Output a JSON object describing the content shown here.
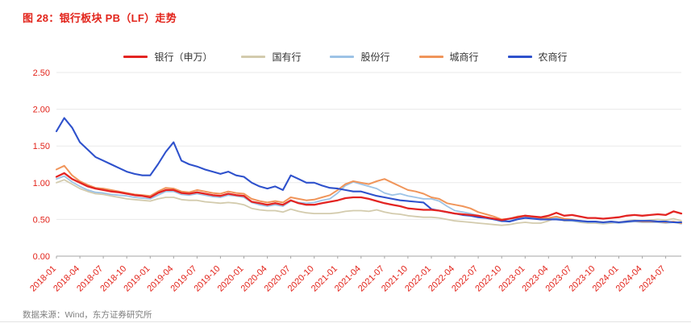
{
  "figure": {
    "title": "图 28：银行板块 PB（LF）走势",
    "source": "数据来源：Wind，东方证券研究所"
  },
  "colors": {
    "title": "#E2231A",
    "axis_label": "#E2231A",
    "source": "#7F7F7F",
    "grid": "#EAEAEA",
    "axis_line": "#A6A6A6"
  },
  "chart_data": {
    "type": "line",
    "title": "图 28：银行板块 PB（LF）走势",
    "xlabel": "",
    "ylabel": "",
    "ylim": [
      0,
      2.5
    ],
    "grid": "horizontal",
    "legend_position": "top",
    "y_ticks": [
      "0.00",
      "0.50",
      "1.00",
      "1.50",
      "2.00",
      "2.50"
    ],
    "x_tick_labels": [
      "2018-01",
      "2018-04",
      "2018-07",
      "2018-10",
      "2019-01",
      "2019-04",
      "2019-07",
      "2019-10",
      "2020-01",
      "2020-04",
      "2020-07",
      "2020-10",
      "2021-01",
      "2021-04",
      "2021-07",
      "2021-10",
      "2022-01",
      "2022-04",
      "2022-07",
      "2022-10",
      "2023-01",
      "2023-04",
      "2023-07",
      "2023-10",
      "2024-01",
      "2024-04",
      "2024-07"
    ],
    "tick_every_points": 3,
    "x_resolution": "monthly, 2018-01 to 2024-09",
    "draw_order": [
      1,
      2,
      3,
      4,
      0
    ],
    "series": [
      {
        "name": "银行（申万）",
        "color": "#E32422",
        "width": 2.3,
        "values": [
          1.08,
          1.13,
          1.05,
          1.0,
          0.95,
          0.92,
          0.9,
          0.88,
          0.87,
          0.85,
          0.83,
          0.82,
          0.8,
          0.86,
          0.9,
          0.9,
          0.86,
          0.85,
          0.87,
          0.85,
          0.83,
          0.82,
          0.85,
          0.83,
          0.82,
          0.74,
          0.72,
          0.7,
          0.72,
          0.7,
          0.76,
          0.72,
          0.7,
          0.7,
          0.72,
          0.74,
          0.76,
          0.79,
          0.8,
          0.8,
          0.78,
          0.75,
          0.72,
          0.7,
          0.68,
          0.65,
          0.64,
          0.63,
          0.63,
          0.62,
          0.6,
          0.58,
          0.57,
          0.56,
          0.55,
          0.53,
          0.51,
          0.49,
          0.51,
          0.53,
          0.55,
          0.54,
          0.53,
          0.55,
          0.59,
          0.55,
          0.56,
          0.54,
          0.52,
          0.52,
          0.51,
          0.52,
          0.53,
          0.55,
          0.56,
          0.55,
          0.56,
          0.57,
          0.56,
          0.61,
          0.58
        ]
      },
      {
        "name": "国有行",
        "color": "#D3CBAD",
        "width": 1.8,
        "values": [
          1.0,
          1.04,
          0.98,
          0.92,
          0.88,
          0.85,
          0.84,
          0.82,
          0.8,
          0.78,
          0.77,
          0.76,
          0.75,
          0.78,
          0.8,
          0.8,
          0.77,
          0.76,
          0.76,
          0.74,
          0.73,
          0.72,
          0.73,
          0.72,
          0.7,
          0.65,
          0.63,
          0.62,
          0.62,
          0.6,
          0.64,
          0.61,
          0.59,
          0.58,
          0.58,
          0.58,
          0.59,
          0.61,
          0.62,
          0.62,
          0.61,
          0.63,
          0.6,
          0.58,
          0.57,
          0.55,
          0.54,
          0.53,
          0.53,
          0.52,
          0.5,
          0.48,
          0.47,
          0.46,
          0.45,
          0.44,
          0.43,
          0.42,
          0.43,
          0.45,
          0.46,
          0.45,
          0.45,
          0.48,
          0.52,
          0.48,
          0.48,
          0.46,
          0.45,
          0.45,
          0.44,
          0.45,
          0.46,
          0.48,
          0.49,
          0.48,
          0.49,
          0.5,
          0.49,
          0.51,
          0.48
        ]
      },
      {
        "name": "股份行",
        "color": "#9DC3E6",
        "width": 1.8,
        "values": [
          1.05,
          1.09,
          1.01,
          0.95,
          0.9,
          0.87,
          0.86,
          0.84,
          0.83,
          0.82,
          0.8,
          0.79,
          0.78,
          0.83,
          0.88,
          0.88,
          0.84,
          0.83,
          0.85,
          0.83,
          0.81,
          0.8,
          0.83,
          0.82,
          0.8,
          0.73,
          0.7,
          0.68,
          0.7,
          0.68,
          0.75,
          0.73,
          0.72,
          0.73,
          0.76,
          0.78,
          0.86,
          0.96,
          1.01,
          0.98,
          0.95,
          0.92,
          0.86,
          0.83,
          0.85,
          0.82,
          0.8,
          0.78,
          0.78,
          0.75,
          0.68,
          0.62,
          0.6,
          0.58,
          0.55,
          0.52,
          0.5,
          0.47,
          0.48,
          0.52,
          0.53,
          0.52,
          0.5,
          0.5,
          0.52,
          0.49,
          0.48,
          0.47,
          0.46,
          0.46,
          0.45,
          0.46,
          0.45,
          0.46,
          0.47,
          0.46,
          0.46,
          0.46,
          0.45,
          0.46,
          0.44
        ]
      },
      {
        "name": "城商行",
        "color": "#F0955A",
        "width": 2.0,
        "values": [
          1.18,
          1.23,
          1.1,
          1.02,
          0.97,
          0.93,
          0.92,
          0.9,
          0.88,
          0.86,
          0.84,
          0.83,
          0.82,
          0.88,
          0.93,
          0.92,
          0.88,
          0.87,
          0.9,
          0.88,
          0.86,
          0.85,
          0.88,
          0.86,
          0.85,
          0.78,
          0.75,
          0.73,
          0.75,
          0.73,
          0.8,
          0.78,
          0.76,
          0.77,
          0.8,
          0.83,
          0.9,
          0.98,
          1.02,
          1.0,
          0.98,
          1.02,
          1.05,
          1.0,
          0.95,
          0.9,
          0.88,
          0.85,
          0.8,
          0.78,
          0.72,
          0.7,
          0.68,
          0.65,
          0.6,
          0.57,
          0.54,
          0.5,
          0.51,
          0.54,
          0.55,
          0.54,
          0.52,
          0.52,
          0.54,
          0.51,
          0.5,
          0.48,
          0.47,
          0.47,
          0.46,
          0.47,
          0.46,
          0.47,
          0.48,
          0.47,
          0.47,
          0.47,
          0.46,
          0.47,
          0.45
        ]
      },
      {
        "name": "农商行",
        "color": "#2E51CC",
        "width": 2.1,
        "values": [
          1.7,
          1.88,
          1.75,
          1.55,
          1.45,
          1.35,
          1.3,
          1.25,
          1.2,
          1.15,
          1.12,
          1.1,
          1.1,
          1.25,
          1.42,
          1.55,
          1.3,
          1.25,
          1.22,
          1.18,
          1.15,
          1.12,
          1.15,
          1.1,
          1.08,
          1.0,
          0.95,
          0.92,
          0.95,
          0.9,
          1.1,
          1.05,
          1.0,
          1.0,
          0.96,
          0.93,
          0.92,
          0.9,
          0.88,
          0.88,
          0.85,
          0.82,
          0.8,
          0.78,
          0.76,
          0.75,
          0.74,
          0.73,
          0.64,
          0.62,
          0.6,
          0.58,
          0.56,
          0.55,
          0.53,
          0.52,
          0.5,
          0.48,
          0.47,
          0.5,
          0.52,
          0.51,
          0.5,
          0.5,
          0.5,
          0.49,
          0.49,
          0.48,
          0.47,
          0.47,
          0.46,
          0.47,
          0.46,
          0.47,
          0.48,
          0.48,
          0.48,
          0.47,
          0.47,
          0.46,
          0.46
        ]
      }
    ]
  }
}
